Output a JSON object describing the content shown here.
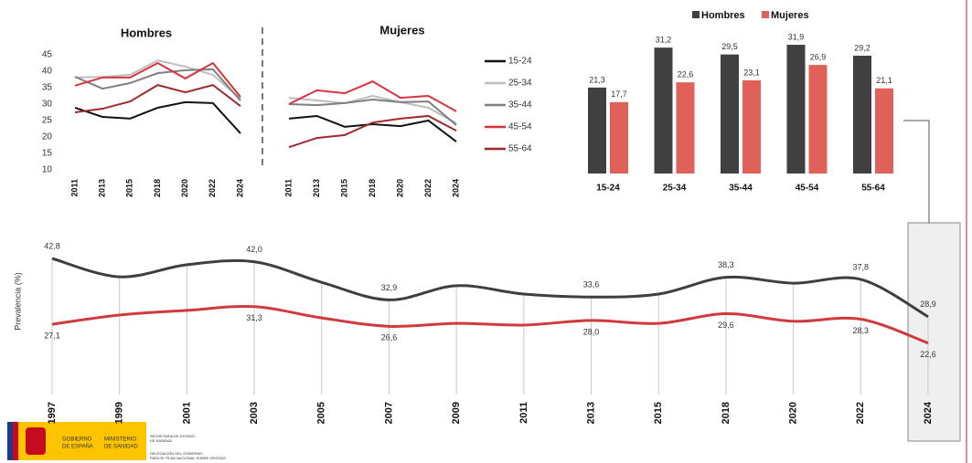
{
  "chart_data": [
    {
      "type": "line",
      "title": "Hombres",
      "categories": [
        "2011",
        "2013",
        "2015",
        "2018",
        "2020",
        "2022",
        "2024"
      ],
      "ylim": [
        10,
        45
      ],
      "yticks": [
        10,
        15,
        20,
        25,
        30,
        35,
        40,
        45
      ],
      "series": [
        {
          "name": "15-24",
          "color": "#111111",
          "values": [
            28.9,
            26.1,
            25.6,
            28.9,
            30.6,
            30.3,
            21.1
          ]
        },
        {
          "name": "25-34",
          "color": "#bdbdbd",
          "values": [
            38.1,
            38.3,
            38.9,
            43.3,
            41.4,
            38.9,
            31.7
          ]
        },
        {
          "name": "35-44",
          "color": "#7f7f7f",
          "values": [
            38.3,
            34.7,
            36.4,
            39.4,
            40.3,
            40.6,
            31.1
          ]
        },
        {
          "name": "45-54",
          "color": "#d9343c",
          "values": [
            35.6,
            38.1,
            38.1,
            42.5,
            37.8,
            42.5,
            32.2
          ]
        },
        {
          "name": "55-64",
          "color": "#9e2a2f",
          "values": [
            27.5,
            28.6,
            30.8,
            35.8,
            33.6,
            35.8,
            29.4
          ]
        }
      ]
    },
    {
      "type": "line",
      "title": "Mujeres",
      "categories": [
        "2011",
        "2013",
        "2015",
        "2018",
        "2020",
        "2022",
        "2024"
      ],
      "ylim": [
        10,
        45
      ],
      "series": [
        {
          "name": "15-24",
          "color": "#111111",
          "values": [
            25.6,
            26.4,
            23.1,
            23.9,
            23.3,
            25.0,
            18.6
          ]
        },
        {
          "name": "25-34",
          "color": "#bdbdbd",
          "values": [
            31.9,
            31.1,
            30.3,
            32.5,
            30.6,
            28.9,
            24.2
          ]
        },
        {
          "name": "35-44",
          "color": "#7f7f7f",
          "values": [
            30.0,
            29.7,
            30.3,
            31.4,
            30.6,
            30.8,
            23.6
          ]
        },
        {
          "name": "45-54",
          "color": "#d9343c",
          "values": [
            30.0,
            34.2,
            33.3,
            36.9,
            31.9,
            32.5,
            27.8
          ]
        },
        {
          "name": "55-64",
          "color": "#9e2a2f",
          "values": [
            16.9,
            19.7,
            20.6,
            24.4,
            25.6,
            26.4,
            21.9
          ]
        }
      ]
    },
    {
      "type": "bar",
      "categories": [
        "15-24",
        "25-34",
        "35-44",
        "45-54",
        "55-64"
      ],
      "ylim": [
        0,
        32
      ],
      "series": [
        {
          "name": "Hombres",
          "color": "#404040",
          "values": [
            21.3,
            31.2,
            29.5,
            31.9,
            29.2
          ],
          "value_labels": [
            "21,3",
            "31,2",
            "29,5",
            "31,9",
            "29,2"
          ]
        },
        {
          "name": "Mujeres",
          "color": "#e0605a",
          "values": [
            17.7,
            22.6,
            23.1,
            26.9,
            21.1
          ],
          "value_labels": [
            "17,7",
            "22,6",
            "23,1",
            "26,9",
            "21,1"
          ]
        }
      ]
    },
    {
      "type": "smooth-line",
      "y_label": "Prevalencia (%)",
      "categories": [
        "1997",
        "1999",
        "2001",
        "2003",
        "2005",
        "2007",
        "2009",
        "2011",
        "2013",
        "2015",
        "2018",
        "2020",
        "2022",
        "2024"
      ],
      "ylim": [
        20,
        45
      ],
      "series": [
        {
          "name": "Hombres",
          "color": "#3f3f3f",
          "values": [
            42.8,
            38.4,
            41.3,
            42.0,
            37.1,
            32.9,
            36.3,
            34.3,
            33.6,
            34.3,
            38.3,
            36.9,
            37.8,
            28.9
          ],
          "value_labels": [
            "42,8",
            null,
            null,
            "42,0",
            null,
            "32,9",
            null,
            null,
            "33,6",
            null,
            "38,3",
            null,
            "37,8",
            "28,9"
          ]
        },
        {
          "name": "Mujeres",
          "color": "#d03a3f",
          "values": [
            27.1,
            29.3,
            30.4,
            31.3,
            28.6,
            26.6,
            27.3,
            26.9,
            28.0,
            27.3,
            29.6,
            27.8,
            28.3,
            22.6
          ],
          "value_labels": [
            "27,1",
            null,
            null,
            "31,3",
            null,
            "26,6",
            null,
            null,
            "28,0",
            null,
            "29,6",
            null,
            "28,3",
            "22,6"
          ]
        }
      ]
    }
  ],
  "logo": {
    "gov": [
      "GOBIERNO",
      "DE ESPAÑA"
    ],
    "ministry": [
      "MINISTERIO",
      "DE SANIDAD"
    ],
    "secretariat": [
      "SECRETARÍA DE ESTADO",
      "DE SANIDAD"
    ],
    "delegation": [
      "DELEGACIÓN DEL GOBIERNO",
      "PARA EL PLAN NACIONAL SOBRE DROGAS"
    ]
  }
}
